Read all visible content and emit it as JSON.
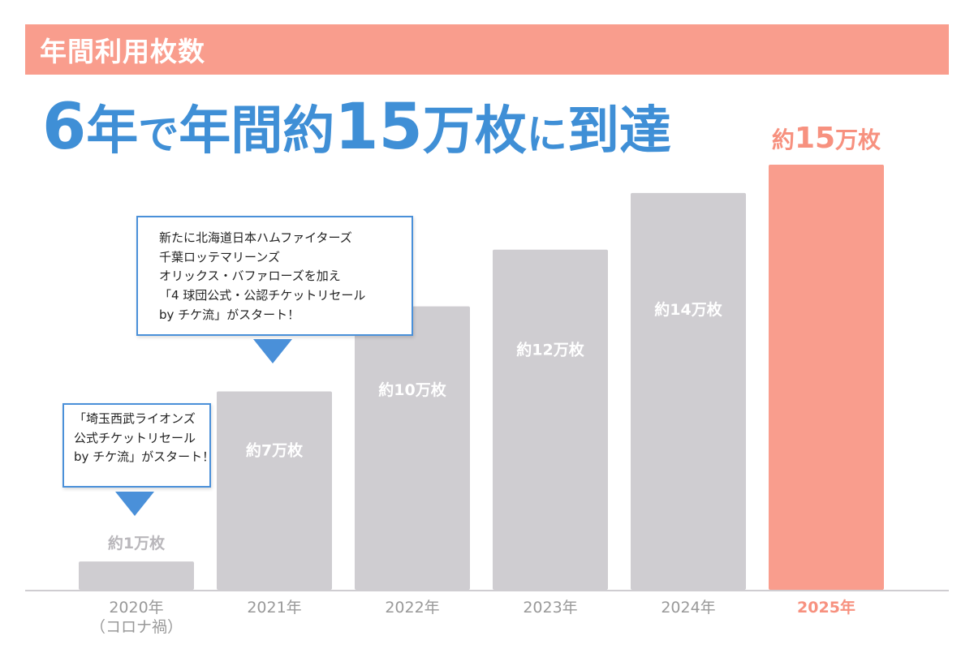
{
  "header": {
    "title": "年間利用枚数"
  },
  "headline": {
    "part1": "6",
    "part2": "年",
    "part3": "で",
    "part4": "年間",
    "part5": "約",
    "part6": "15",
    "part7": "万",
    "part8": "枚",
    "part9": "に",
    "part10": "到達"
  },
  "highlight": {
    "prefix": "約",
    "number": "15",
    "suffix": "万枚"
  },
  "callouts": {
    "c2020": {
      "lines": [
        "「埼玉西武ライオンズ",
        "公式チケットリセール",
        "by チケ流」がスタート！"
      ]
    },
    "c2021": {
      "lines": [
        "新たに北海道日本ハムファイターズ",
        "千葉ロッテマリーンズ",
        "オリックス・バファローズを加え",
        "「4 球団公式・公認チケットリセール",
        "by チケ流」がスタート！"
      ]
    }
  },
  "colors": {
    "bar_default": "#cfcdd1",
    "bar_highlight": "#f99d8d",
    "bar_label_default": "#ffffff",
    "bar_label_outside": "#b9b7bb",
    "axis_label_default": "#999999",
    "axis_label_highlight": "#f7917f",
    "baseline": "#cfcdd1"
  },
  "chart_data": {
    "type": "bar",
    "title": "年間利用枚数",
    "ylabel": "",
    "xlabel": "",
    "unit": "万枚",
    "ylim": [
      0,
      15
    ],
    "categories": [
      "2020年\n（コロナ禍）",
      "2021年",
      "2022年",
      "2023年",
      "2024年",
      "2025年"
    ],
    "values": [
      1,
      7,
      10,
      12,
      14,
      15
    ],
    "value_labels": [
      "約1万枚",
      "約7万枚",
      "約10万枚",
      "約12万枚",
      "約14万枚",
      ""
    ],
    "highlight_index": 5,
    "grid": false,
    "legend": "none"
  }
}
